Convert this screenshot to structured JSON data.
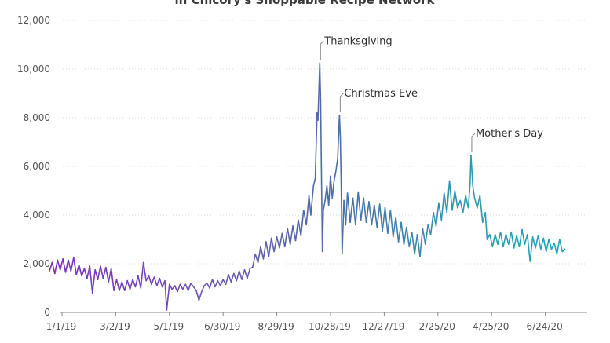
{
  "chart_data": {
    "type": "line",
    "title": "in Chicory's Shoppable Recipe Network",
    "xlabel": "",
    "ylabel": "",
    "ylim": [
      0,
      12000
    ],
    "xlim_day": [
      0,
      576
    ],
    "grid": true,
    "legend": "none",
    "y_ticks": [
      {
        "value": 0,
        "label": "0"
      },
      {
        "value": 2000,
        "label": "2,000"
      },
      {
        "value": 4000,
        "label": "4,000"
      },
      {
        "value": 6000,
        "label": "6,000"
      },
      {
        "value": 8000,
        "label": "8,000"
      },
      {
        "value": 10000,
        "label": "10,000"
      },
      {
        "value": 12000,
        "label": "12,000"
      }
    ],
    "x_ticks": [
      {
        "day": 0,
        "label": "1/1/19"
      },
      {
        "day": 60,
        "label": "3/2/19"
      },
      {
        "day": 120,
        "label": "5/1/19"
      },
      {
        "day": 180,
        "label": "6/30/19"
      },
      {
        "day": 240,
        "label": "8/29/19"
      },
      {
        "day": 300,
        "label": "10/28/19"
      },
      {
        "day": 360,
        "label": "12/27/19"
      },
      {
        "day": 420,
        "label": "2/25/20"
      },
      {
        "day": 480,
        "label": "4/25/20"
      },
      {
        "day": 540,
        "label": "6/24/20"
      }
    ],
    "gradient_stops": [
      {
        "day": 0,
        "color": "#7b2fbe"
      },
      {
        "day": 200,
        "color": "#6a5aac"
      },
      {
        "day": 330,
        "color": "#4a6fa6"
      },
      {
        "day": 460,
        "color": "#2f98b0"
      },
      {
        "day": 576,
        "color": "#1ea6b8"
      }
    ],
    "series": [
      {
        "points": [
          [
            0,
            1700
          ],
          [
            3,
            2050
          ],
          [
            6,
            1600
          ],
          [
            9,
            2150
          ],
          [
            12,
            1750
          ],
          [
            15,
            2200
          ],
          [
            18,
            1650
          ],
          [
            21,
            2150
          ],
          [
            24,
            1700
          ],
          [
            27,
            2250
          ],
          [
            30,
            1550
          ],
          [
            33,
            1950
          ],
          [
            36,
            1500
          ],
          [
            39,
            1800
          ],
          [
            42,
            1400
          ],
          [
            45,
            1900
          ],
          [
            48,
            800
          ],
          [
            51,
            1750
          ],
          [
            54,
            1350
          ],
          [
            57,
            1900
          ],
          [
            60,
            1400
          ],
          [
            63,
            1850
          ],
          [
            66,
            1250
          ],
          [
            69,
            1800
          ],
          [
            72,
            900
          ],
          [
            75,
            1350
          ],
          [
            78,
            900
          ],
          [
            81,
            1250
          ],
          [
            84,
            900
          ],
          [
            87,
            1300
          ],
          [
            90,
            950
          ],
          [
            93,
            1350
          ],
          [
            96,
            1050
          ],
          [
            99,
            1500
          ],
          [
            102,
            1000
          ],
          [
            105,
            2050
          ],
          [
            108,
            1300
          ],
          [
            111,
            1500
          ],
          [
            114,
            1150
          ],
          [
            117,
            1450
          ],
          [
            120,
            1100
          ],
          [
            123,
            1400
          ],
          [
            126,
            1050
          ],
          [
            129,
            1300
          ],
          [
            131,
            100
          ],
          [
            134,
            1150
          ],
          [
            137,
            950
          ],
          [
            140,
            1100
          ],
          [
            143,
            850
          ],
          [
            146,
            1150
          ],
          [
            149,
            950
          ],
          [
            152,
            1150
          ],
          [
            155,
            900
          ],
          [
            158,
            1200
          ],
          [
            161,
            1050
          ],
          [
            164,
            900
          ],
          [
            167,
            500
          ],
          [
            170,
            850
          ],
          [
            173,
            1100
          ],
          [
            176,
            1200
          ],
          [
            179,
            1000
          ],
          [
            182,
            1350
          ],
          [
            185,
            1050
          ],
          [
            188,
            1300
          ],
          [
            191,
            1100
          ],
          [
            194,
            1350
          ],
          [
            197,
            1150
          ],
          [
            200,
            1550
          ],
          [
            203,
            1250
          ],
          [
            206,
            1600
          ],
          [
            209,
            1300
          ],
          [
            212,
            1700
          ],
          [
            215,
            1350
          ],
          [
            218,
            1750
          ],
          [
            221,
            1400
          ],
          [
            224,
            1800
          ],
          [
            227,
            1850
          ],
          [
            230,
            2400
          ],
          [
            233,
            2050
          ],
          [
            236,
            2700
          ],
          [
            239,
            2200
          ],
          [
            242,
            2900
          ],
          [
            245,
            2300
          ],
          [
            248,
            3050
          ],
          [
            251,
            2500
          ],
          [
            254,
            3100
          ],
          [
            257,
            2650
          ],
          [
            260,
            3250
          ],
          [
            263,
            2700
          ],
          [
            266,
            3450
          ],
          [
            269,
            2800
          ],
          [
            272,
            3550
          ],
          [
            275,
            2950
          ],
          [
            278,
            3800
          ],
          [
            281,
            3150
          ],
          [
            284,
            4200
          ],
          [
            287,
            3600
          ],
          [
            290,
            4800
          ],
          [
            292,
            4000
          ],
          [
            295,
            5200
          ],
          [
            297,
            5500
          ],
          [
            299,
            8200
          ],
          [
            300,
            7900
          ],
          [
            302,
            10250
          ],
          [
            303,
            8700
          ],
          [
            304,
            5400
          ],
          [
            305,
            2500
          ],
          [
            306,
            4200
          ],
          [
            308,
            4600
          ],
          [
            310,
            5200
          ],
          [
            312,
            4400
          ],
          [
            314,
            5600
          ],
          [
            316,
            4700
          ],
          [
            318,
            5400
          ],
          [
            320,
            5800
          ],
          [
            322,
            6300
          ],
          [
            324,
            8100
          ],
          [
            325,
            7200
          ],
          [
            326,
            5100
          ],
          [
            327,
            2400
          ],
          [
            329,
            4600
          ],
          [
            331,
            3600
          ],
          [
            333,
            4900
          ],
          [
            336,
            3700
          ],
          [
            339,
            4700
          ],
          [
            342,
            3600
          ],
          [
            345,
            4950
          ],
          [
            348,
            3800
          ],
          [
            351,
            4700
          ],
          [
            354,
            3700
          ],
          [
            357,
            4550
          ],
          [
            360,
            3600
          ],
          [
            363,
            4400
          ],
          [
            366,
            3500
          ],
          [
            369,
            4450
          ],
          [
            372,
            3350
          ],
          [
            375,
            4300
          ],
          [
            378,
            3250
          ],
          [
            381,
            4200
          ],
          [
            384,
            3100
          ],
          [
            387,
            3900
          ],
          [
            390,
            2900
          ],
          [
            393,
            3700
          ],
          [
            396,
            2800
          ],
          [
            399,
            3500
          ],
          [
            402,
            2700
          ],
          [
            405,
            3300
          ],
          [
            408,
            2400
          ],
          [
            411,
            3200
          ],
          [
            414,
            2300
          ],
          [
            417,
            3450
          ],
          [
            420,
            2800
          ],
          [
            423,
            3600
          ],
          [
            426,
            3200
          ],
          [
            429,
            4100
          ],
          [
            432,
            3550
          ],
          [
            435,
            4500
          ],
          [
            438,
            3800
          ],
          [
            441,
            4900
          ],
          [
            444,
            4100
          ],
          [
            447,
            5400
          ],
          [
            450,
            4200
          ],
          [
            453,
            5000
          ],
          [
            456,
            4300
          ],
          [
            459,
            4600
          ],
          [
            462,
            4100
          ],
          [
            465,
            4800
          ],
          [
            468,
            4300
          ],
          [
            470,
            5300
          ],
          [
            471,
            6450
          ],
          [
            473,
            5200
          ],
          [
            475,
            4700
          ],
          [
            478,
            4300
          ],
          [
            481,
            4800
          ],
          [
            484,
            3700
          ],
          [
            487,
            4100
          ],
          [
            489,
            3000
          ],
          [
            492,
            3200
          ],
          [
            495,
            2700
          ],
          [
            498,
            3200
          ],
          [
            501,
            2800
          ],
          [
            504,
            3300
          ],
          [
            507,
            2700
          ],
          [
            510,
            3200
          ],
          [
            513,
            2800
          ],
          [
            516,
            3300
          ],
          [
            519,
            2650
          ],
          [
            522,
            3150
          ],
          [
            525,
            2700
          ],
          [
            528,
            3400
          ],
          [
            531,
            2800
          ],
          [
            534,
            3200
          ],
          [
            537,
            2100
          ],
          [
            540,
            3100
          ],
          [
            543,
            2650
          ],
          [
            546,
            3150
          ],
          [
            549,
            2600
          ],
          [
            552,
            3050
          ],
          [
            555,
            2500
          ],
          [
            558,
            3000
          ],
          [
            561,
            2600
          ],
          [
            564,
            2850
          ],
          [
            567,
            2400
          ],
          [
            570,
            3000
          ],
          [
            573,
            2500
          ],
          [
            576,
            2600
          ]
        ]
      }
    ],
    "annotations": [
      {
        "text": "Thanksgiving",
        "day": 302,
        "value": 10250
      },
      {
        "text": "Christmas Eve",
        "day": 324,
        "value": 8100
      },
      {
        "text": "Mother's Day",
        "day": 471,
        "value": 6450
      }
    ]
  }
}
